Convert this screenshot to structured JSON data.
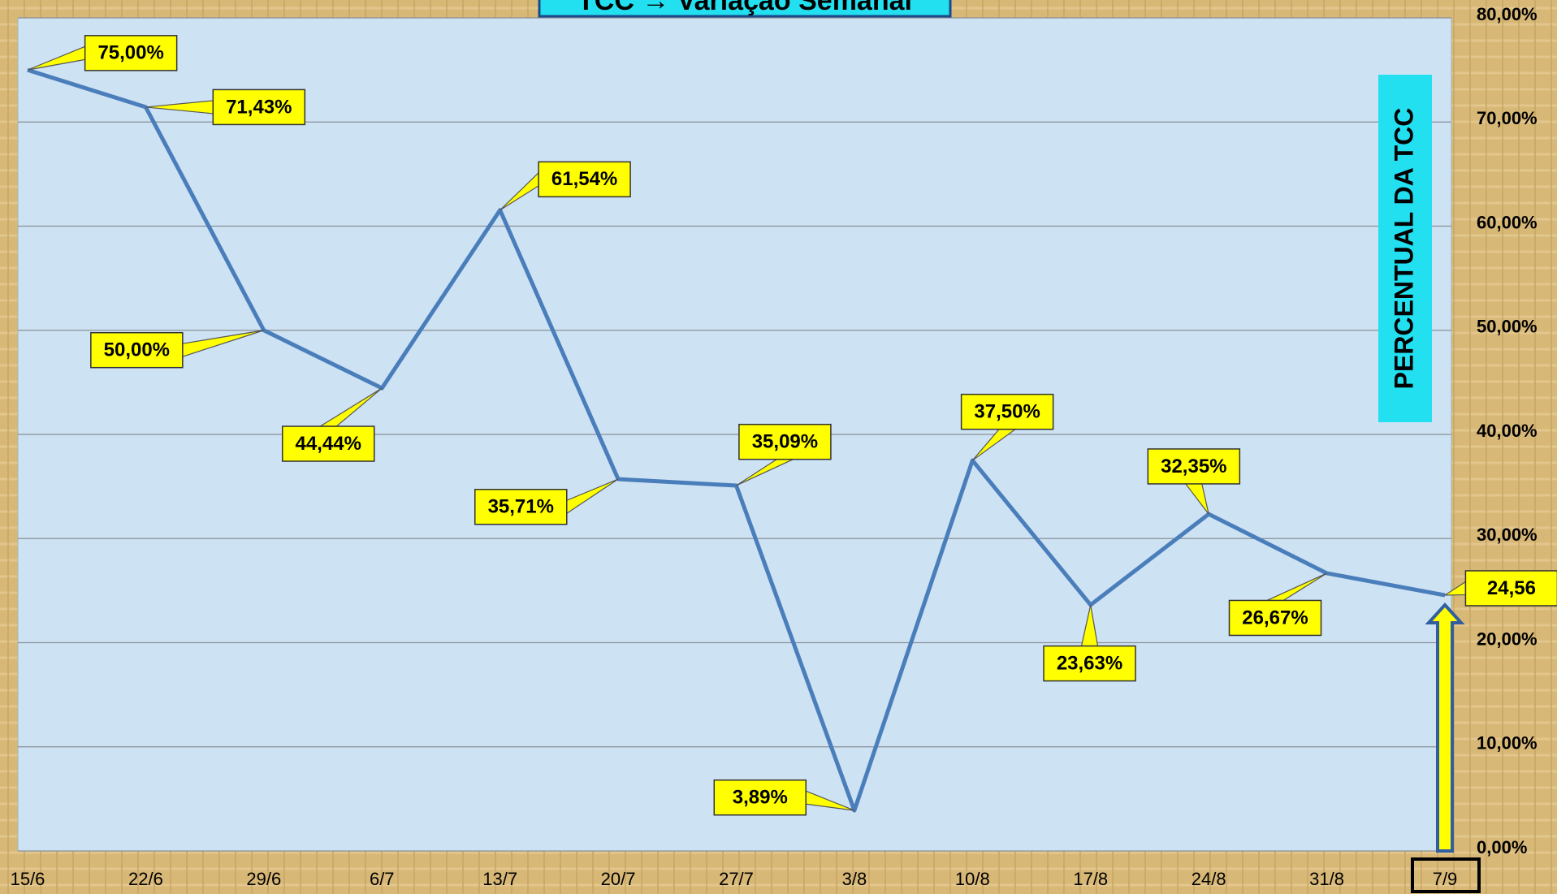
{
  "chart_data": {
    "type": "line",
    "title": "TCC → Variação Semanal",
    "y_axis_label": "PERCENTUAL DA TCC",
    "categories": [
      "15/6",
      "22/6",
      "29/6",
      "6/7",
      "13/7",
      "20/7",
      "27/7",
      "3/8",
      "10/8",
      "17/8",
      "24/8",
      "31/8",
      "7/9"
    ],
    "series": [
      {
        "name": "TCC",
        "color": "#4a7ebb",
        "values": [
          75,
          71.43,
          50,
          44.44,
          61.54,
          35.71,
          35.09,
          3.89,
          37.5,
          23.63,
          32.35,
          26.67,
          24.56
        ],
        "value_labels": [
          "75,00%",
          "71,43%",
          "50,00%",
          "44,44%",
          "61,54%",
          "35,71%",
          "35,09%",
          "3,89%",
          "37,50%",
          "23,63%",
          "32,35%",
          "26,67%",
          "24,56"
        ]
      }
    ],
    "ylim": [
      0,
      80
    ],
    "yticks": [
      {
        "value": 0,
        "label": "0,00%"
      },
      {
        "value": 10,
        "label": "10,00%"
      },
      {
        "value": 20,
        "label": "20,00%"
      },
      {
        "value": 30,
        "label": "30,00%"
      },
      {
        "value": 40,
        "label": "40,00%"
      },
      {
        "value": 50,
        "label": "50,00%"
      },
      {
        "value": 60,
        "label": "60,00%"
      },
      {
        "value": 70,
        "label": "70,00%"
      },
      {
        "value": 80,
        "label": "80,00%"
      }
    ],
    "grid": true
  }
}
